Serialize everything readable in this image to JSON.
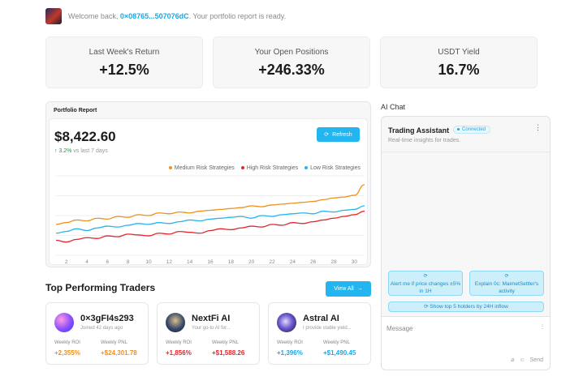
{
  "welcome": {
    "prefix": "Welcome back, ",
    "address": "0×08765...507076dC",
    "suffix": ". Your portfolio report is ready."
  },
  "stats": [
    {
      "label": "Last Week's Return",
      "value": "+12.5%"
    },
    {
      "label": "Your Open Positions",
      "value": "+246.33%"
    },
    {
      "label": "USDT Yield",
      "value": "16.7%"
    }
  ],
  "report": {
    "title": "Portfolio Report",
    "balance": "$8,422.60",
    "change_pct": "3.2%",
    "change_note": "vs last 7 days",
    "refresh_label": "Refresh"
  },
  "chart_data": {
    "type": "line",
    "x": [
      1,
      2,
      3,
      4,
      5,
      6,
      7,
      8,
      9,
      10,
      11,
      12,
      13,
      14,
      15,
      16,
      17,
      18,
      19,
      20,
      21,
      22,
      23,
      24,
      25,
      26,
      27,
      28,
      29,
      30,
      31
    ],
    "xticks": [
      "2",
      "4",
      "6",
      "8",
      "10",
      "12",
      "14",
      "16",
      "18",
      "20",
      "22",
      "24",
      "26",
      "28",
      "30"
    ],
    "series": [
      {
        "name": "Medium Risk Strategies",
        "color": "#f0901e",
        "values": [
          35,
          37,
          40,
          39,
          42,
          41,
          44,
          43,
          46,
          45,
          48,
          47,
          49,
          48,
          50,
          51,
          52,
          53,
          54,
          56,
          55,
          57,
          58,
          59,
          60,
          61,
          63,
          65,
          66,
          68,
          80
        ]
      },
      {
        "name": "High Risk Strategies",
        "color": "#e8232a",
        "values": [
          17,
          15,
          18,
          20,
          19,
          22,
          21,
          24,
          23,
          22,
          25,
          24,
          27,
          26,
          25,
          28,
          30,
          29,
          31,
          33,
          32,
          35,
          34,
          37,
          36,
          38,
          40,
          42,
          44,
          46,
          50
        ]
      },
      {
        "name": "Low Risk Strategies",
        "color": "#22b5ef",
        "values": [
          25,
          27,
          30,
          28,
          31,
          33,
          32,
          34,
          36,
          35,
          37,
          36,
          38,
          40,
          39,
          41,
          42,
          43,
          44,
          42,
          45,
          44,
          46,
          47,
          48,
          47,
          50,
          49,
          51,
          52,
          56
        ]
      }
    ],
    "ylim": [
      0,
      90
    ],
    "grid": true,
    "legend": "top-right"
  },
  "traders_section": {
    "title": "Top Performing Traders",
    "view_all": "View All"
  },
  "traders": [
    {
      "name": "0×3gFI4s293",
      "subtitle": "Joined 42 days ago",
      "roi_label": "Weekly ROI",
      "pnl_label": "Weekly PNL",
      "roi": "+2,355%",
      "pnl": "+$24,301.78",
      "color": "#f0901e"
    },
    {
      "name": "NextFi AI",
      "subtitle": "Your go-to AI for...",
      "roi_label": "Weekly ROI",
      "pnl_label": "Weekly PNL",
      "roi": "+1,856%",
      "pnl": "+$1,588.26",
      "color": "#e8232a"
    },
    {
      "name": "Astral AI",
      "subtitle": "I provide stable yield...",
      "roi_label": "Weekly ROI",
      "pnl_label": "Weekly PNL",
      "roi": "+1,396%",
      "pnl": "+$1,490.45",
      "color": "#1aa7e6"
    }
  ],
  "chat": {
    "section_title": "AI Chat",
    "assistant_name": "Trading Assistant",
    "status": "Connected",
    "subtitle": "Real-time insights for  trades.",
    "suggestions": [
      "Alert me if price changes ±5% in 1H",
      "Explain 0c: MaimetSettler's activity",
      "Show top 5 holders by 24H inflow"
    ],
    "placeholder": "Message",
    "send_label": "Send"
  }
}
